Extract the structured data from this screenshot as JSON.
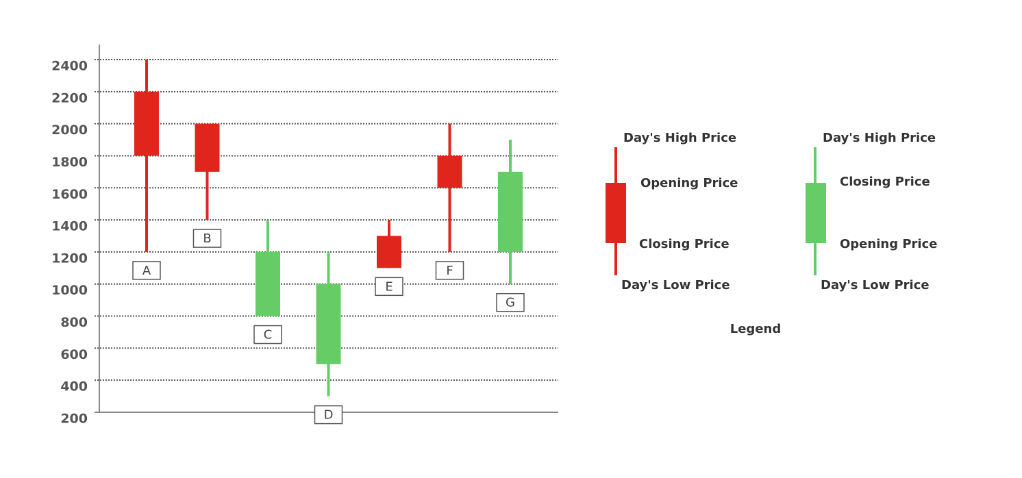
{
  "chart_data": {
    "type": "candlestick",
    "categories": [
      "A",
      "B",
      "C",
      "D",
      "E",
      "F",
      "G"
    ],
    "open": [
      2200,
      2000,
      800,
      500,
      1300,
      1800,
      1200
    ],
    "high": [
      2400,
      2000,
      1400,
      1200,
      1400,
      2000,
      1900
    ],
    "low": [
      1200,
      1400,
      800,
      300,
      1100,
      1200,
      1000
    ],
    "close": [
      1800,
      1700,
      1200,
      1000,
      1100,
      1600,
      1700
    ],
    "up_color": "#66cc66",
    "down_color": "#e0261c",
    "ylim": [
      200,
      2400
    ],
    "yticks": [
      200,
      400,
      600,
      800,
      1000,
      1200,
      1400,
      1600,
      1800,
      2000,
      2200,
      2400
    ],
    "grid": true,
    "legend": {
      "title": "Legend",
      "down": {
        "high": "Day's High Price",
        "top": "Opening Price",
        "bottom": "Closing Price",
        "low": "Day's Low Price"
      },
      "up": {
        "high": "Day's High Price",
        "top": "Closing Price",
        "bottom": "Opening Price",
        "low": "Day's Low Price"
      }
    }
  }
}
